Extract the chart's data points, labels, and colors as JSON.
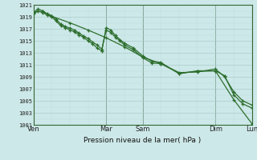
{
  "bg_color": "#cde8e8",
  "grid_major_color": "#aacccc",
  "grid_minor_color": "#bbdddd",
  "line_color": "#2d6e2d",
  "ylabel_min": 1001,
  "ylabel_max": 1021,
  "xlabel": "Pression niveau de la mer( hPa )",
  "xtick_labels": [
    "Ven",
    "Mar",
    "Sam",
    "Dim",
    "Lun"
  ],
  "xtick_positions": [
    0.0,
    0.333,
    0.5,
    0.833,
    1.0
  ],
  "vline_positions": [
    0.0,
    0.333,
    0.5,
    0.833,
    1.0
  ],
  "series1_x": [
    0.0,
    0.021,
    0.042,
    0.063,
    0.083,
    0.104,
    0.125,
    0.146,
    0.167,
    0.188,
    0.208,
    0.229,
    0.25,
    0.271,
    0.292,
    0.313,
    0.333,
    0.354,
    0.375,
    0.396,
    0.417,
    0.458,
    0.5,
    0.542,
    0.583,
    0.667,
    0.75,
    0.833,
    0.875,
    0.917,
    0.958,
    1.0
  ],
  "series1_y": [
    1019.7,
    1020.3,
    1020.0,
    1019.5,
    1019.2,
    1018.6,
    1017.8,
    1017.4,
    1017.1,
    1016.8,
    1016.3,
    1015.8,
    1015.4,
    1014.8,
    1014.3,
    1013.6,
    1016.8,
    1016.4,
    1015.6,
    1015.0,
    1014.3,
    1013.5,
    1012.2,
    1011.3,
    1011.2,
    1009.7,
    1009.8,
    1010.3,
    1009.0,
    1006.5,
    1005.0,
    1004.3
  ],
  "series2_x": [
    0.0,
    0.021,
    0.042,
    0.063,
    0.083,
    0.104,
    0.125,
    0.146,
    0.167,
    0.188,
    0.208,
    0.229,
    0.25,
    0.271,
    0.292,
    0.313,
    0.333,
    0.354,
    0.375,
    0.396,
    0.417,
    0.458,
    0.5,
    0.542,
    0.583,
    0.667,
    0.75,
    0.833,
    0.875,
    0.917,
    0.958,
    1.0
  ],
  "series2_y": [
    1019.5,
    1020.0,
    1019.7,
    1019.3,
    1019.0,
    1018.3,
    1017.5,
    1017.2,
    1016.8,
    1016.5,
    1016.0,
    1015.6,
    1015.0,
    1014.5,
    1013.8,
    1013.3,
    1017.2,
    1016.8,
    1015.9,
    1015.2,
    1014.6,
    1013.8,
    1012.5,
    1011.6,
    1011.4,
    1009.5,
    1010.0,
    1010.0,
    1009.2,
    1006.0,
    1004.5,
    1003.8
  ],
  "series3_x": [
    0.0,
    0.042,
    0.083,
    0.167,
    0.25,
    0.333,
    0.417,
    0.5,
    0.583,
    0.667,
    0.75,
    0.833,
    0.917,
    1.0
  ],
  "series3_y": [
    1019.8,
    1019.9,
    1019.1,
    1018.0,
    1016.8,
    1015.5,
    1014.0,
    1012.3,
    1011.2,
    1009.6,
    1009.9,
    1010.0,
    1005.2,
    1001.2
  ]
}
